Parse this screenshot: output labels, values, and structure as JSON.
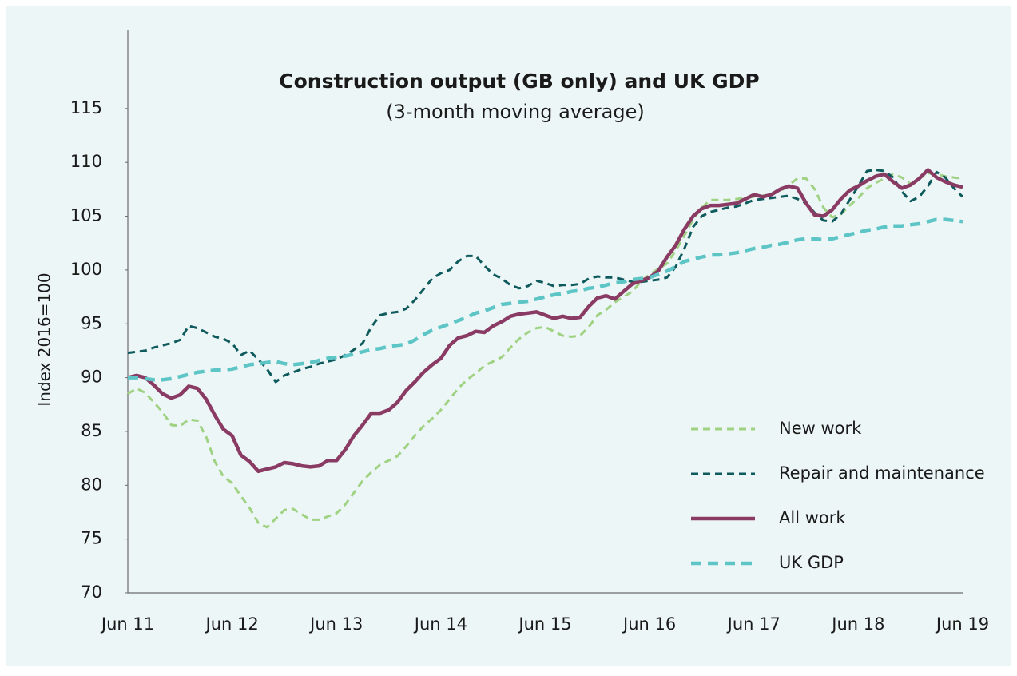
{
  "chart_data": {
    "type": "line",
    "title": "Construction output (GB only) and UK GDP",
    "subtitle": "(3-month moving average)",
    "ylabel": "Index 2016=100",
    "categories": [
      "Jun 11",
      null,
      null,
      null,
      null,
      null,
      null,
      null,
      null,
      null,
      null,
      null,
      "Jun 12",
      null,
      null,
      null,
      null,
      null,
      null,
      null,
      null,
      null,
      null,
      null,
      "Jun 13",
      null,
      null,
      null,
      null,
      null,
      null,
      null,
      null,
      null,
      null,
      null,
      "Jun 14",
      null,
      null,
      null,
      null,
      null,
      null,
      null,
      null,
      null,
      null,
      null,
      "Jun 15",
      null,
      null,
      null,
      null,
      null,
      null,
      null,
      null,
      null,
      null,
      null,
      "Jun 16",
      null,
      null,
      null,
      null,
      null,
      null,
      null,
      null,
      null,
      null,
      null,
      "Jun 17",
      null,
      null,
      null,
      null,
      null,
      null,
      null,
      null,
      null,
      null,
      null,
      "Jun 18",
      null,
      null,
      null,
      null,
      null,
      null,
      null,
      null,
      null,
      null,
      null,
      "Jun 19"
    ],
    "ylim": [
      70,
      122
    ],
    "yticks": [
      70,
      75,
      80,
      85,
      90,
      95,
      100,
      105,
      110,
      115
    ],
    "grid": false,
    "legend": "lower right",
    "series": [
      {
        "name": "New work",
        "color": "#9fd283",
        "dashed": true,
        "linewidth": 3,
        "values": [
          88.5,
          89,
          88.6,
          87.7,
          86.8,
          85.6,
          85.5,
          86.1,
          86,
          84.5,
          82.2,
          80.8,
          80.2,
          79,
          77.9,
          76.5,
          76.1,
          76.9,
          77.7,
          77.8,
          77.3,
          76.8,
          76.8,
          77.1,
          77.4,
          78.2,
          79.3,
          80.4,
          81.2,
          81.9,
          82.3,
          82.7,
          83.6,
          84.6,
          85.5,
          86.2,
          87,
          88,
          89,
          89.8,
          90.4,
          91.1,
          91.5,
          91.9,
          92.8,
          93.6,
          94.2,
          94.6,
          94.7,
          94.3,
          93.9,
          93.8,
          93.9,
          94.7,
          95.8,
          96.3,
          97,
          97.5,
          98,
          98.9,
          99.6,
          100.1,
          100.6,
          101.8,
          103.2,
          104.7,
          105.8,
          106.5,
          106.5,
          106.5,
          106.6,
          106.7,
          106.8,
          106.9,
          107.1,
          107.3,
          107.9,
          108.5,
          108.5,
          107.5,
          105.8,
          104.9,
          105.2,
          106,
          106.7,
          107.6,
          108.1,
          108.5,
          108.9,
          108.6,
          108,
          108.5,
          109,
          108.9,
          108.7,
          108.6,
          108.5
        ]
      },
      {
        "name": "Repair and maintenance",
        "color": "#0e5a5c",
        "dashed": true,
        "linewidth": 3,
        "values": [
          92.3,
          92.4,
          92.5,
          92.8,
          93,
          93.2,
          93.5,
          94.8,
          94.6,
          94.2,
          93.8,
          93.6,
          93.2,
          92.1,
          92.5,
          91.7,
          90.8,
          89.6,
          90.2,
          90.5,
          90.8,
          91,
          91.3,
          91.5,
          91.7,
          92.1,
          92.6,
          93.2,
          94.7,
          95.8,
          96,
          96.1,
          96.4,
          97.2,
          98.2,
          99.2,
          99.7,
          100,
          100.8,
          101.3,
          101.3,
          100.4,
          99.6,
          99.2,
          98.6,
          98.3,
          98.5,
          99,
          98.8,
          98.5,
          98.6,
          98.6,
          98.7,
          99.2,
          99.4,
          99.3,
          99.3,
          99.1,
          98.9,
          98.9,
          99,
          99.1,
          99.3,
          100.3,
          102,
          104,
          105,
          105.4,
          105.6,
          105.8,
          105.9,
          106.2,
          106.5,
          106.6,
          106.7,
          106.8,
          106.9,
          106.6,
          106.2,
          105.3,
          104.6,
          104.5,
          105.2,
          106.5,
          107.8,
          109.2,
          109.3,
          109.2,
          108.6,
          107.3,
          106.4,
          106.8,
          107.8,
          109.1,
          108.6,
          107.6,
          106.8
        ]
      },
      {
        "name": "All work",
        "color": "#8a3b63",
        "dashed": false,
        "linewidth": 4.5,
        "values": [
          90,
          90.2,
          90,
          89.3,
          88.5,
          88.1,
          88.4,
          89.2,
          89,
          88,
          86.5,
          85.2,
          84.6,
          82.8,
          82.2,
          81.3,
          81.5,
          81.7,
          82.1,
          82,
          81.8,
          81.7,
          81.8,
          82.3,
          82.3,
          83.3,
          84.6,
          85.6,
          86.7,
          86.7,
          87,
          87.7,
          88.8,
          89.6,
          90.5,
          91.2,
          91.8,
          93,
          93.7,
          93.9,
          94.3,
          94.2,
          94.8,
          95.2,
          95.7,
          95.9,
          96,
          96.1,
          95.8,
          95.5,
          95.7,
          95.5,
          95.6,
          96.6,
          97.4,
          97.6,
          97.3,
          98,
          98.7,
          99,
          99.3,
          99.9,
          101.2,
          102.3,
          103.8,
          105,
          105.7,
          106,
          106,
          106.1,
          106.2,
          106.6,
          107,
          106.8,
          107,
          107.5,
          107.8,
          107.6,
          106.2,
          105.1,
          105,
          105.6,
          106.6,
          107.4,
          107.8,
          108.3,
          108.7,
          108.9,
          108.2,
          107.6,
          107.9,
          108.5,
          109.3,
          108.6,
          108.2,
          107.9,
          107.7
        ]
      },
      {
        "name": "UK GDP",
        "color": "#5ec5c6",
        "dashed": true,
        "linewidth": 4.5,
        "values": [
          90,
          90,
          89.9,
          89.8,
          89.8,
          89.9,
          90.1,
          90.3,
          90.5,
          90.6,
          90.7,
          90.7,
          90.8,
          91,
          91.2,
          91.3,
          91.4,
          91.5,
          91.3,
          91.2,
          91.3,
          91.4,
          91.6,
          91.8,
          91.9,
          92,
          92.2,
          92.4,
          92.6,
          92.7,
          92.9,
          93,
          93.1,
          93.5,
          94,
          94.4,
          94.7,
          95,
          95.3,
          95.6,
          96,
          96.2,
          96.5,
          96.8,
          96.9,
          97,
          97.1,
          97.3,
          97.5,
          97.7,
          97.8,
          98,
          98.1,
          98.3,
          98.4,
          98.6,
          98.8,
          98.9,
          99.1,
          99.2,
          99.3,
          99.6,
          99.9,
          100.3,
          100.8,
          101,
          101.2,
          101.4,
          101.4,
          101.5,
          101.6,
          101.8,
          102,
          102.1,
          102.3,
          102.4,
          102.6,
          102.8,
          102.9,
          102.9,
          102.8,
          102.9,
          103.1,
          103.3,
          103.5,
          103.7,
          103.8,
          104,
          104.1,
          104.1,
          104.2,
          104.3,
          104.5,
          104.7,
          104.7,
          104.6,
          104.5
        ]
      }
    ]
  }
}
